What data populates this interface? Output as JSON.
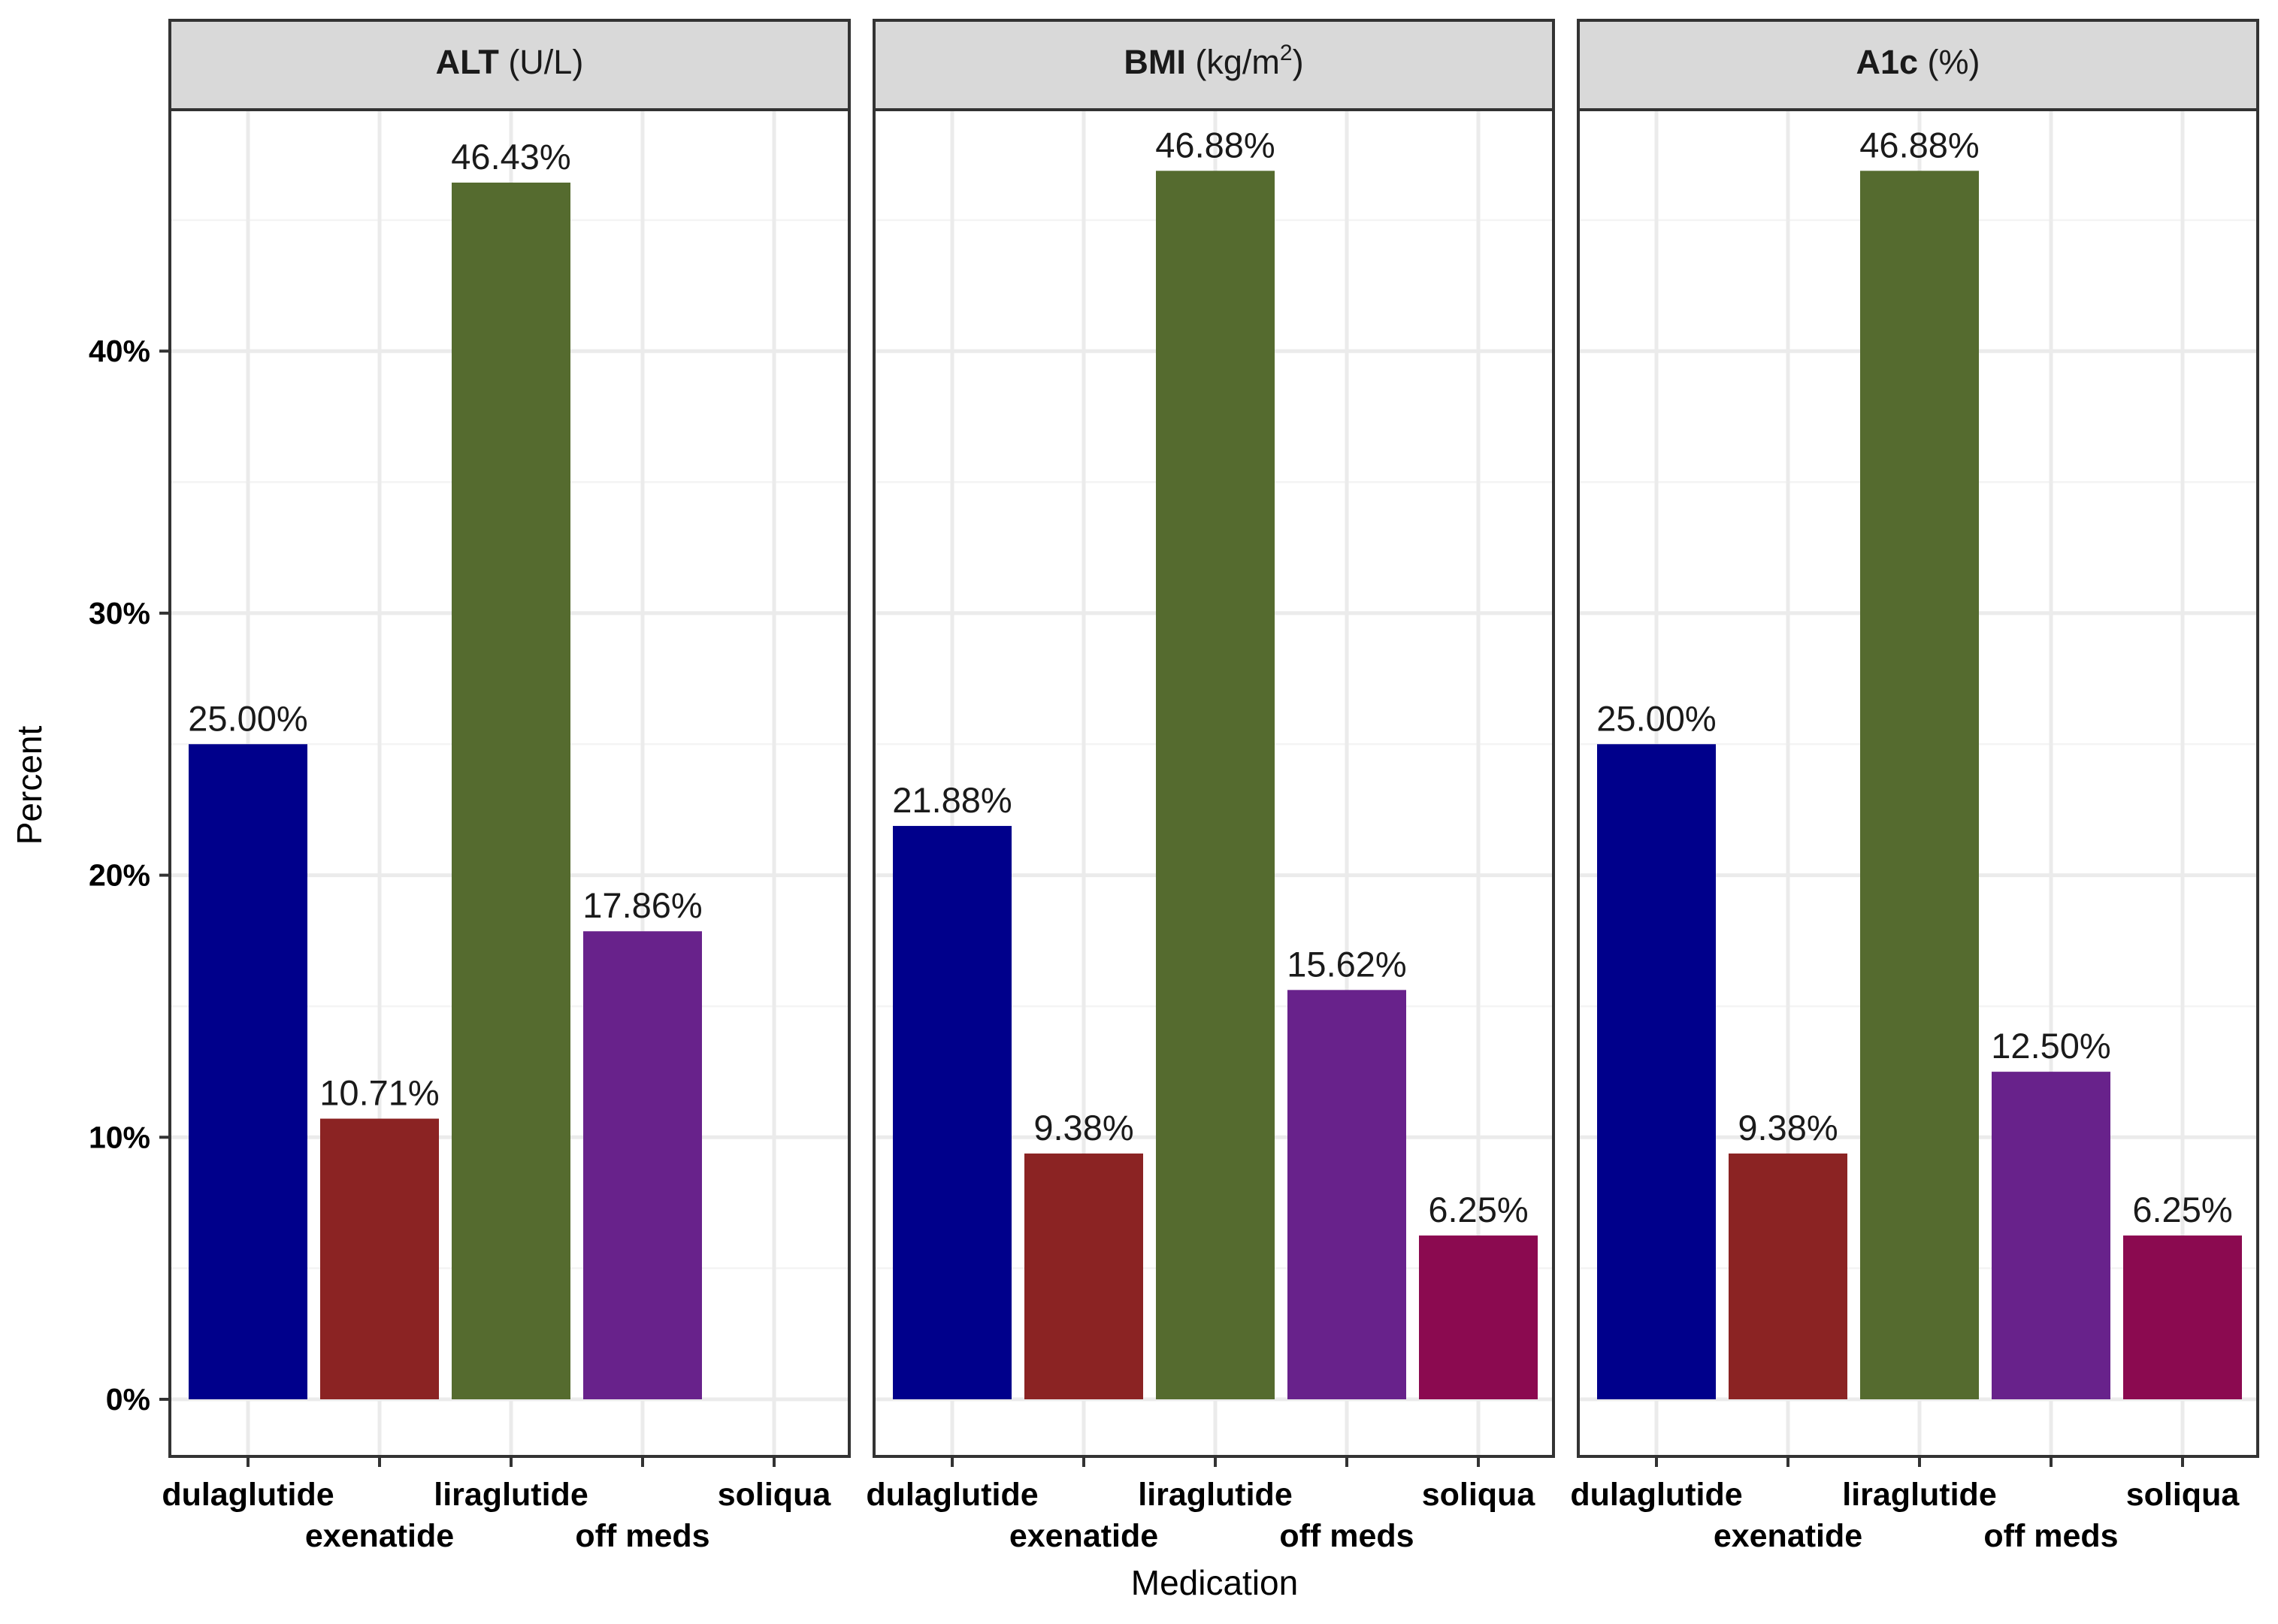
{
  "chart_data": {
    "type": "bar",
    "facets": [
      {
        "name": "ALT",
        "unit": "(U/L)",
        "unit_sup": ""
      },
      {
        "name": "BMI",
        "unit": "(kg/m",
        "unit_sup": "2",
        "unit_close": ")"
      },
      {
        "name": "A1c",
        "unit": "(%)",
        "unit_sup": ""
      }
    ],
    "categories": [
      "dulaglutide",
      "exenatide",
      "liraglutide",
      "off meds",
      "soliqua"
    ],
    "colors": [
      "#00008b",
      "#8b2323",
      "#556b2f",
      "#68228b",
      "#8b0a50"
    ],
    "series": [
      {
        "values": [
          25.0,
          10.71,
          46.43,
          17.86,
          null
        ],
        "labels": [
          "25.00%",
          "10.71%",
          "46.43%",
          "17.86%",
          ""
        ]
      },
      {
        "values": [
          21.88,
          9.38,
          46.88,
          15.62,
          6.25
        ],
        "labels": [
          "21.88%",
          "9.38%",
          "46.88%",
          "15.62%",
          "6.25%"
        ]
      },
      {
        "values": [
          25.0,
          9.38,
          46.88,
          12.5,
          6.25
        ],
        "labels": [
          "25.00%",
          "9.38%",
          "46.88%",
          "12.50%",
          "6.25%"
        ]
      }
    ],
    "xlabel": "Medication",
    "ylabel": "Percent",
    "ylim": [
      -2.3,
      49.6
    ],
    "yticks": [
      0,
      10,
      20,
      30,
      40
    ],
    "ytick_labels": [
      "0%",
      "10%",
      "20%",
      "30%",
      "40%"
    ],
    "grid": true,
    "legend": "none"
  }
}
